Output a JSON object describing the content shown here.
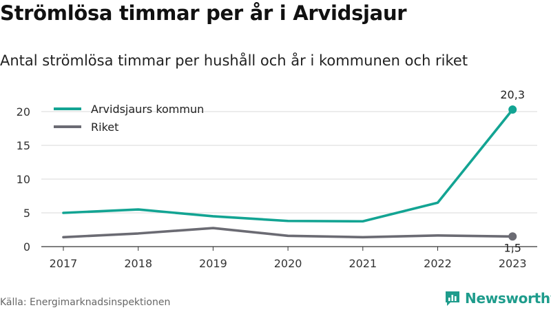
{
  "title": "Strömlösa timmar per år i Arvidsjaur",
  "subtitle": "Antal strömlösa timmar per hushåll och år i kommunen och riket",
  "source": "Källa: Energimarknadsinspektionen",
  "brand": {
    "name": "Newsworthy",
    "icon": "newsworthy-logo-icon"
  },
  "colors": {
    "accent": "#13a493",
    "secondary": "#6b6b73",
    "grid": "#d9d9d9"
  },
  "chart_data": {
    "type": "line",
    "title": "Strömlösa timmar per år i Arvidsjaur",
    "subtitle": "Antal strömlösa timmar per hushåll och år i kommunen och riket",
    "x": [
      "2017",
      "2018",
      "2019",
      "2020",
      "2021",
      "2022",
      "2023"
    ],
    "ylim": [
      0,
      20
    ],
    "yticks": [
      "0",
      "5",
      "10",
      "15",
      "20"
    ],
    "grid": true,
    "legend_position": "top-left",
    "series": [
      {
        "name": "Arvidsjaurs kommun",
        "color": "#13a493",
        "values": [
          5.0,
          5.5,
          4.5,
          3.8,
          3.75,
          6.5,
          20.3
        ],
        "end_label": "20,3"
      },
      {
        "name": "Riket",
        "color": "#6b6b73",
        "values": [
          1.4,
          1.95,
          2.75,
          1.6,
          1.4,
          1.65,
          1.5
        ],
        "end_label": "1,5"
      }
    ]
  }
}
